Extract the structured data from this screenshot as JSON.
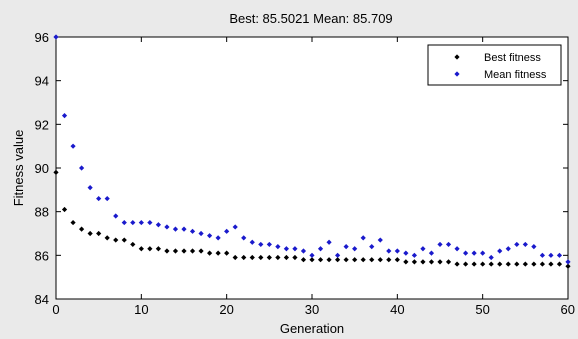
{
  "chart_data": {
    "type": "scatter",
    "title": "Best: 85.5021 Mean: 85.709",
    "xlabel": "Generation",
    "ylabel": "Fitness value",
    "xlim": [
      0,
      60
    ],
    "ylim": [
      84,
      96
    ],
    "xticks": [
      0,
      10,
      20,
      30,
      40,
      50,
      60
    ],
    "yticks": [
      84,
      86,
      88,
      90,
      92,
      94,
      96
    ],
    "grid": false,
    "legend_position": "top-right",
    "x": [
      0,
      1,
      2,
      3,
      4,
      5,
      6,
      7,
      8,
      9,
      10,
      11,
      12,
      13,
      14,
      15,
      16,
      17,
      18,
      19,
      20,
      21,
      22,
      23,
      24,
      25,
      26,
      27,
      28,
      29,
      30,
      31,
      32,
      33,
      34,
      35,
      36,
      37,
      38,
      39,
      40,
      41,
      42,
      43,
      44,
      45,
      46,
      47,
      48,
      49,
      50,
      51,
      52,
      53,
      54,
      55,
      56,
      57,
      58,
      59,
      60
    ],
    "series": [
      {
        "name": "Best fitness",
        "color": "#000000",
        "marker": "diamond",
        "values": [
          89.8,
          88.1,
          87.5,
          87.2,
          87.0,
          87.0,
          86.8,
          86.7,
          86.7,
          86.5,
          86.3,
          86.3,
          86.3,
          86.2,
          86.2,
          86.2,
          86.2,
          86.2,
          86.1,
          86.1,
          86.1,
          85.9,
          85.9,
          85.9,
          85.9,
          85.9,
          85.9,
          85.9,
          85.9,
          85.8,
          85.8,
          85.8,
          85.8,
          85.8,
          85.8,
          85.8,
          85.8,
          85.8,
          85.8,
          85.8,
          85.8,
          85.7,
          85.7,
          85.7,
          85.7,
          85.7,
          85.7,
          85.6,
          85.6,
          85.6,
          85.6,
          85.6,
          85.6,
          85.6,
          85.6,
          85.6,
          85.6,
          85.6,
          85.6,
          85.6,
          85.5
        ]
      },
      {
        "name": "Mean fitness",
        "color": "#1a1acc",
        "marker": "diamond",
        "values": [
          96.0,
          92.4,
          91.0,
          90.0,
          89.1,
          88.6,
          88.6,
          87.8,
          87.5,
          87.5,
          87.5,
          87.5,
          87.4,
          87.3,
          87.2,
          87.2,
          87.1,
          87.0,
          86.9,
          86.8,
          87.1,
          87.3,
          86.8,
          86.6,
          86.5,
          86.5,
          86.4,
          86.3,
          86.3,
          86.2,
          86.0,
          86.3,
          86.6,
          86.0,
          86.4,
          86.3,
          86.8,
          86.4,
          86.7,
          86.2,
          86.2,
          86.1,
          86.0,
          86.3,
          86.1,
          86.5,
          86.5,
          86.3,
          86.1,
          86.1,
          86.1,
          85.9,
          86.2,
          86.3,
          86.5,
          86.5,
          86.4,
          86.0,
          86.0,
          86.0,
          85.7
        ]
      }
    ]
  }
}
